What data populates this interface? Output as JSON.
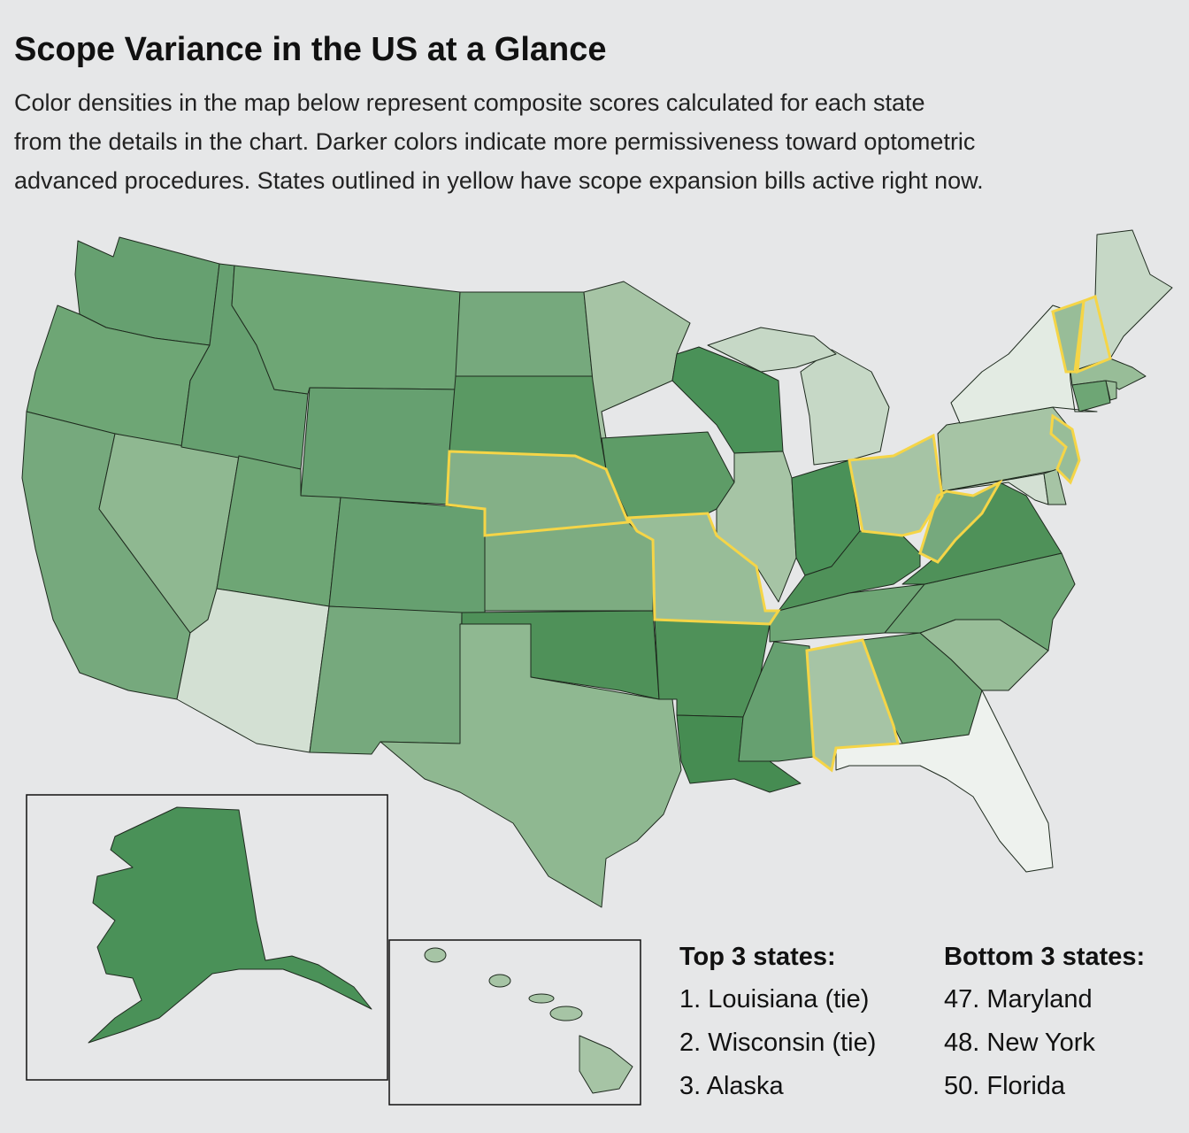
{
  "header": {
    "title": "Scope Variance in the US at a Glance",
    "description": [
      "Color densities in the map below represent composite scores calculated for each state",
      "from the details in the chart. Darker colors indicate more permissiveness toward optometric",
      "advanced procedures. States outlined in yellow have scope expansion bills active right now."
    ]
  },
  "legend": {
    "top": {
      "heading": "Top 3 states:",
      "items": [
        "1. Louisiana (tie)",
        "2. Wisconsin (tie)",
        "3. Alaska"
      ]
    },
    "bottom": {
      "heading": "Bottom 3 states:",
      "items": [
        "47. Maryland",
        "48. New York",
        "50. Florida"
      ]
    }
  }
}
